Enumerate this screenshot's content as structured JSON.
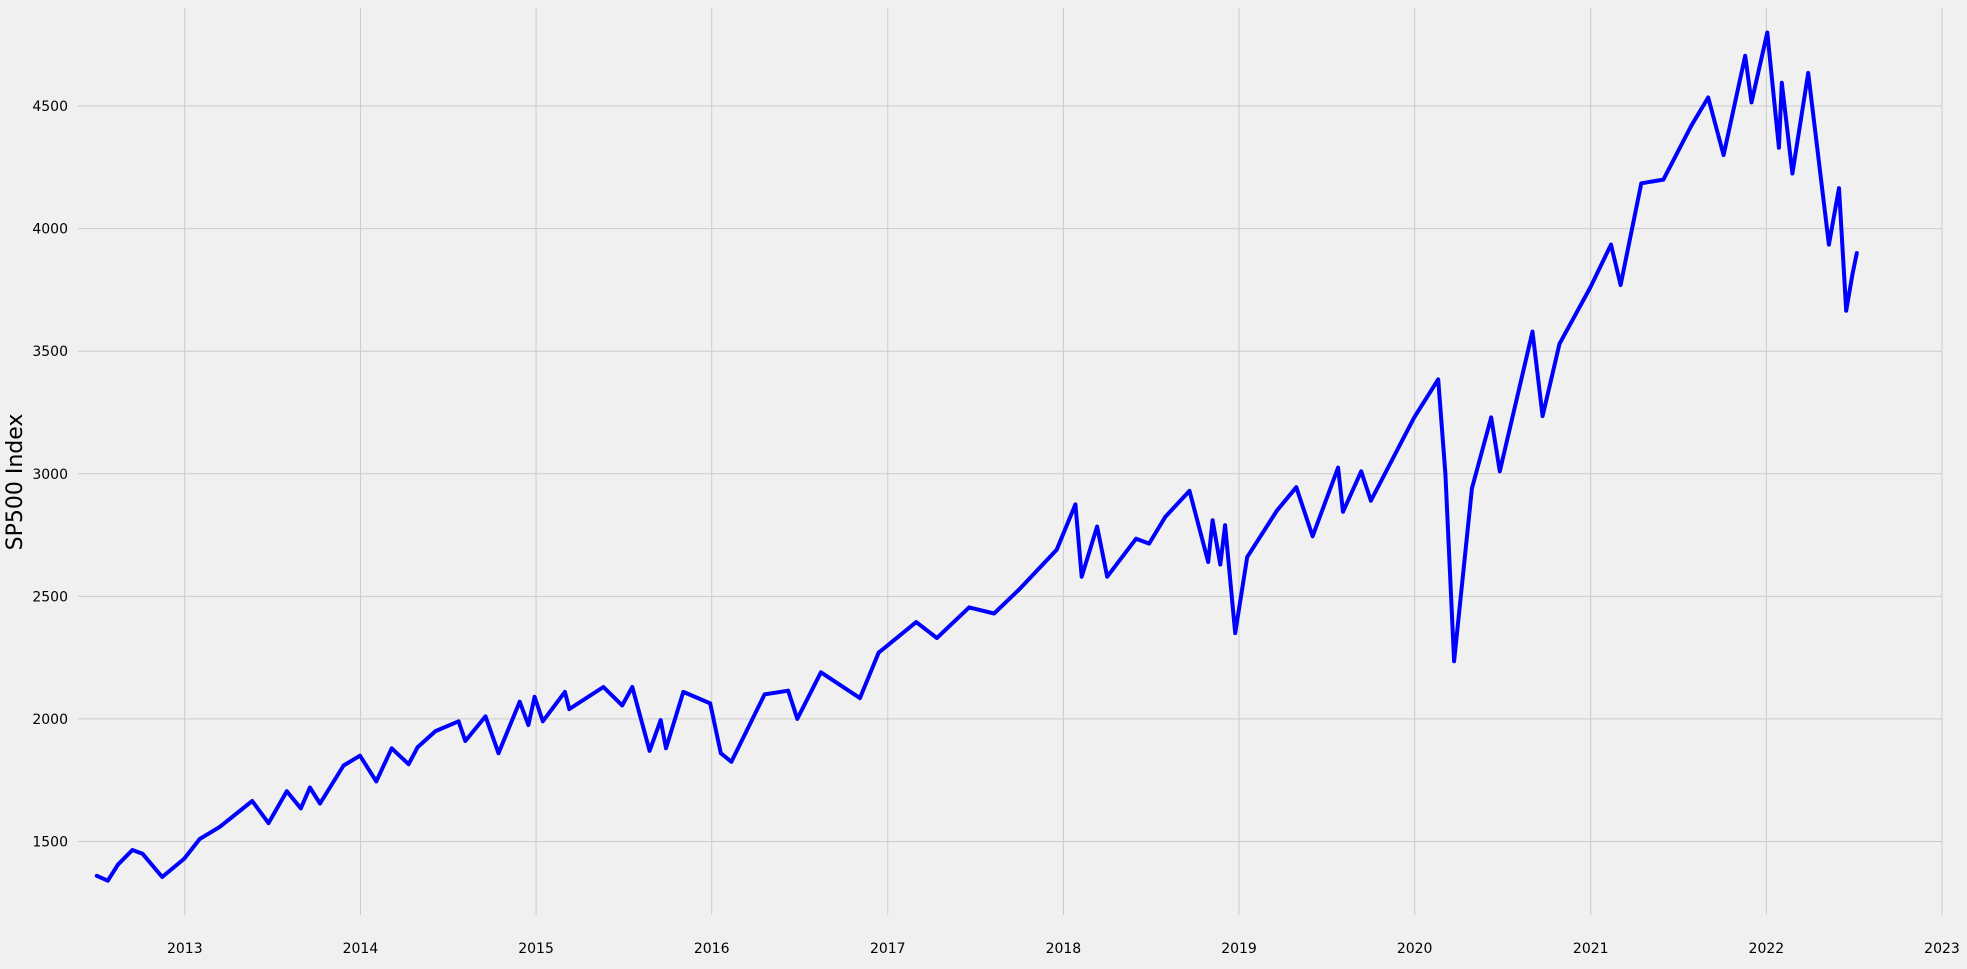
{
  "chart_data": {
    "type": "line",
    "title": "",
    "xlabel": "",
    "ylabel": "SP500 Index",
    "xlim": [
      "2012-05-24",
      "2023-01-01"
    ],
    "ylim": [
      1200,
      4900
    ],
    "grid": true,
    "x_ticks": [
      "2013",
      "2014",
      "2015",
      "2016",
      "2017",
      "2018",
      "2019",
      "2020",
      "2021",
      "2022",
      "2023"
    ],
    "y_ticks": [
      "1500",
      "2000",
      "2500",
      "3000",
      "3500",
      "4000",
      "4500"
    ],
    "colors": {
      "line": "#0000ff",
      "background": "#f0f0f0",
      "grid": "#cbcbcb"
    },
    "series": [
      {
        "x": [
          "2012-07-02",
          "2012-07-25",
          "2012-08-15",
          "2012-09-14",
          "2012-10-05",
          "2012-11-15",
          "2012-12-31",
          "2013-02-01",
          "2013-03-15",
          "2013-05-21",
          "2013-06-24",
          "2013-08-01",
          "2013-08-30",
          "2013-09-18",
          "2013-10-09",
          "2013-11-27",
          "2013-12-31",
          "2014-02-03",
          "2014-03-07",
          "2014-04-11",
          "2014-04-30",
          "2014-06-06",
          "2014-07-24",
          "2014-08-07",
          "2014-09-18",
          "2014-10-15",
          "2014-11-28",
          "2014-12-16",
          "2014-12-29",
          "2015-01-15",
          "2015-03-02",
          "2015-03-11",
          "2015-05-21",
          "2015-06-29",
          "2015-07-20",
          "2015-08-25",
          "2015-09-17",
          "2015-09-28",
          "2015-11-03",
          "2015-12-29",
          "2016-01-20",
          "2016-02-11",
          "2016-04-20",
          "2016-06-08",
          "2016-06-27",
          "2016-08-15",
          "2016-11-04",
          "2016-12-13",
          "2017-03-01",
          "2017-04-13",
          "2017-06-19",
          "2017-08-10",
          "2017-10-02",
          "2017-12-18",
          "2018-01-26",
          "2018-02-08",
          "2018-03-12",
          "2018-04-02",
          "2018-06-01",
          "2018-06-28",
          "2018-08-01",
          "2018-09-20",
          "2018-10-29",
          "2018-11-07",
          "2018-11-23",
          "2018-12-03",
          "2018-12-24",
          "2019-01-18",
          "2019-03-21",
          "2019-04-30",
          "2019-06-03",
          "2019-07-26",
          "2019-08-05",
          "2019-09-12",
          "2019-10-02",
          "2019-12-31",
          "2020-02-19",
          "2020-03-05",
          "2020-03-23",
          "2020-04-29",
          "2020-06-08",
          "2020-06-26",
          "2020-09-02",
          "2020-09-23",
          "2020-10-28",
          "2020-12-31",
          "2021-02-12",
          "2021-03-04",
          "2021-04-16",
          "2021-06-01",
          "2021-07-29",
          "2021-09-02",
          "2021-10-04",
          "2021-11-18",
          "2021-12-01",
          "2022-01-03",
          "2022-01-27",
          "2022-02-02",
          "2022-02-24",
          "2022-03-29",
          "2022-05-11",
          "2022-06-01",
          "2022-06-16",
          "2022-06-29",
          "2022-07-08"
        ],
        "values": [
          1360,
          1340,
          1405,
          1465,
          1450,
          1355,
          1430,
          1510,
          1560,
          1665,
          1575,
          1705,
          1635,
          1720,
          1655,
          1810,
          1850,
          1745,
          1880,
          1815,
          1885,
          1950,
          1990,
          1910,
          2010,
          1860,
          2070,
          1975,
          2090,
          1990,
          2110,
          2040,
          2130,
          2055,
          2130,
          1870,
          1995,
          1880,
          2110,
          2063,
          1860,
          1825,
          2100,
          2115,
          2000,
          2190,
          2085,
          2270,
          2395,
          2330,
          2455,
          2430,
          2530,
          2690,
          2875,
          2580,
          2785,
          2580,
          2735,
          2715,
          2825,
          2930,
          2640,
          2810,
          2630,
          2790,
          2350,
          2660,
          2850,
          2945,
          2745,
          3025,
          2845,
          3010,
          2890,
          3230,
          3385,
          3000,
          2235,
          2940,
          3230,
          3010,
          3580,
          3235,
          3530,
          3760,
          3935,
          3770,
          4185,
          4200,
          4420,
          4535,
          4300,
          4705,
          4515,
          4800,
          4330,
          4595,
          4225,
          4635,
          3935,
          4165,
          3665,
          3815,
          3900
        ]
      }
    ]
  }
}
